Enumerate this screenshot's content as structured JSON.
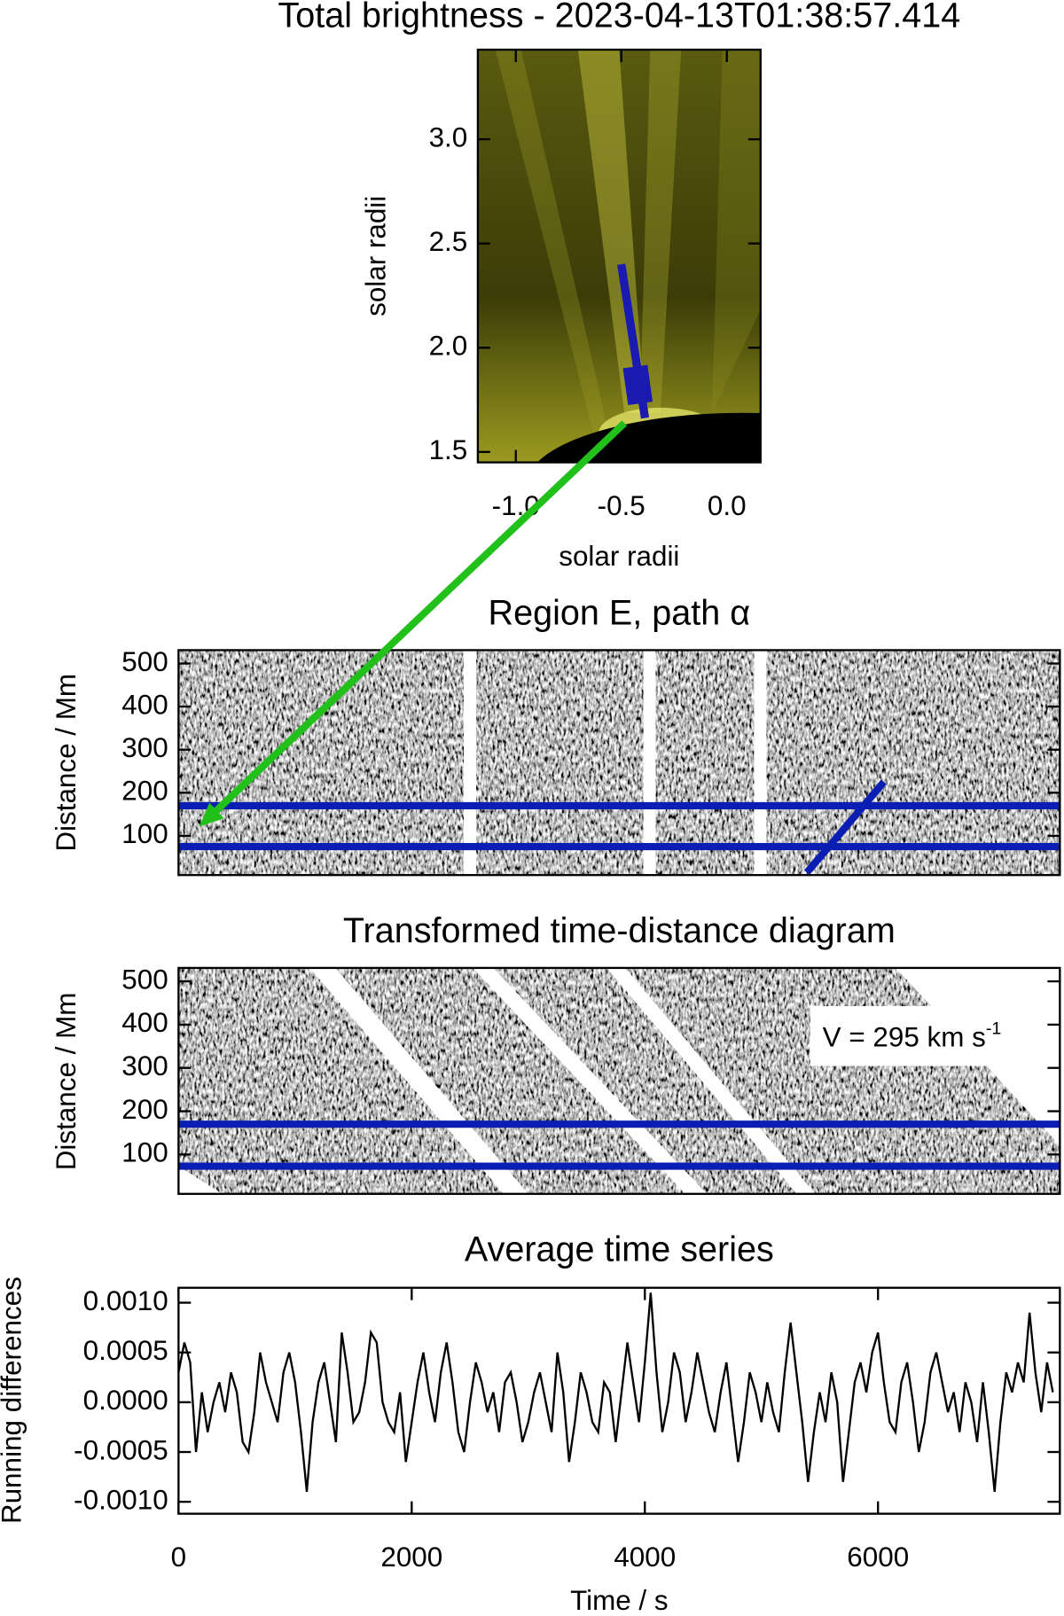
{
  "chart_data": [
    {
      "type": "image",
      "title": "Total brightness - 2023-04-13T01:38:57.414",
      "xlabel": "solar radii",
      "ylabel": "solar radii",
      "xlim": [
        -1.18,
        0.16
      ],
      "ylim": [
        1.45,
        3.43
      ],
      "xticks": [
        {
          "value": -1,
          "label": "-1.0"
        },
        -0.5,
        {
          "value": 0,
          "label": "0.0"
        }
      ],
      "yticks": [
        1.5,
        {
          "value": 2,
          "label": "2.0"
        },
        2.5,
        {
          "value": 3,
          "label": "3.0"
        }
      ]
    },
    {
      "type": "heatmap",
      "title": "Region E, path α",
      "ylabel": "Distance / Mm",
      "xlim": [
        0,
        7560
      ],
      "ylim": [
        9,
        531
      ],
      "yticks": [
        100,
        200,
        300,
        400,
        500
      ],
      "hlines": [
        170,
        75
      ],
      "line_color": "#0a1eb4",
      "gaps": [
        2500,
        4040,
        4990
      ],
      "fit": {
        "x": [
          5390,
          6050
        ],
        "y": [
          15,
          225
        ]
      }
    },
    {
      "type": "heatmap",
      "title": "Transformed time-distance diagram",
      "ylabel": "Distance / Mm",
      "xlim": [
        0,
        7560
      ],
      "ylim": [
        9,
        531
      ],
      "yticks": [
        100,
        200,
        300,
        400,
        500
      ],
      "hlines": [
        170,
        73
      ],
      "line_color": "#0a1eb4",
      "annotation": {
        "text": "V = 295 km s",
        "sup": "-1"
      }
    },
    {
      "type": "line",
      "title": "Average time series",
      "xlabel": "Time / s",
      "ylabel": "Running differences",
      "color": "#000000",
      "xlim": [
        0,
        7560
      ],
      "ylim": [
        -0.00112,
        0.00115
      ],
      "xticks": [
        0,
        2000,
        4000,
        6000
      ],
      "yticks": [
        {
          "value": 0.001,
          "label": "0.0010"
        },
        {
          "value": 0.0005,
          "label": "0.0005"
        },
        {
          "value": 0,
          "label": "0.0000"
        },
        {
          "value": -0.0005,
          "label": "-0.0005"
        },
        {
          "value": -0.001,
          "label": "-0.0010"
        }
      ],
      "x": [
        0,
        50,
        100,
        150,
        200,
        250,
        300,
        350,
        400,
        450,
        500,
        550,
        600,
        650,
        700,
        750,
        800,
        850,
        900,
        950,
        1000,
        1050,
        1100,
        1150,
        1200,
        1250,
        1300,
        1350,
        1400,
        1450,
        1500,
        1550,
        1600,
        1650,
        1700,
        1750,
        1800,
        1850,
        1900,
        1950,
        2000,
        2050,
        2100,
        2150,
        2200,
        2250,
        2300,
        2350,
        2400,
        2450,
        2500,
        2550,
        2600,
        2650,
        2700,
        2750,
        2800,
        2850,
        2900,
        2950,
        3000,
        3050,
        3100,
        3150,
        3200,
        3250,
        3300,
        3350,
        3400,
        3450,
        3500,
        3550,
        3600,
        3650,
        3700,
        3750,
        3800,
        3850,
        3900,
        3950,
        4000,
        4050,
        4100,
        4150,
        4200,
        4250,
        4300,
        4350,
        4400,
        4450,
        4500,
        4550,
        4600,
        4650,
        4700,
        4750,
        4800,
        4850,
        4900,
        4950,
        5000,
        5050,
        5100,
        5150,
        5200,
        5250,
        5300,
        5350,
        5400,
        5450,
        5500,
        5550,
        5600,
        5650,
        5700,
        5750,
        5800,
        5850,
        5900,
        5950,
        6000,
        6050,
        6100,
        6150,
        6200,
        6250,
        6300,
        6350,
        6400,
        6450,
        6500,
        6550,
        6600,
        6650,
        6700,
        6750,
        6800,
        6850,
        6900,
        6950,
        7000,
        7050,
        7100,
        7150,
        7200,
        7250,
        7300,
        7350,
        7400,
        7450,
        7500
      ],
      "values": [
        0.0003,
        0.0006,
        0.0004,
        -0.0005,
        0.0001,
        -0.0003,
        0,
        0.0002,
        -0.0001,
        0.0003,
        0.0001,
        -0.0004,
        -0.0005,
        -0.0001,
        0.0005,
        0.0002,
        0,
        -0.0002,
        0.0003,
        0.0005,
        0.0002,
        -0.0003,
        -0.0009,
        -0.0002,
        0.0002,
        0.0004,
        0,
        -0.0004,
        0.0007,
        0.0003,
        -0.0002,
        -0.0001,
        0.0002,
        0.0007,
        0.0006,
        0,
        -0.0002,
        -0.0003,
        0.0001,
        -0.0006,
        -0.0002,
        0.0002,
        0.0005,
        0.0001,
        -0.0002,
        0.0003,
        0.0006,
        0.0002,
        -0.0003,
        -0.0005,
        0,
        0.0004,
        0.0002,
        -0.0001,
        0.0001,
        -0.0003,
        0.0002,
        0.0003,
        0,
        -0.0004,
        -0.0002,
        0.0001,
        0.0003,
        0,
        -0.0003,
        0.0005,
        0.0001,
        -0.0006,
        -0.0002,
        0.0003,
        0.0001,
        -0.0002,
        -0.0003,
        0.0002,
        0.0001,
        -0.0004,
        0.0001,
        0.0006,
        0.0002,
        -0.0002,
        0.0004,
        0.0011,
        0.0003,
        -0.0003,
        0,
        0.0005,
        0.0003,
        -0.0002,
        0.0001,
        0.0005,
        0.0002,
        -0.0001,
        -0.0003,
        0.0001,
        0.0004,
        -0.0001,
        -0.0006,
        -0.0002,
        0.0003,
        0.0001,
        -0.0002,
        0.0002,
        -0.0001,
        -0.0003,
        0.0003,
        0.0008,
        0.0003,
        -0.0002,
        -0.0008,
        -0.0003,
        0.0001,
        -0.0002,
        0.0003,
        0,
        -0.0008,
        -0.0003,
        0.0002,
        0.0004,
        0.0001,
        0.0005,
        0.0007,
        0.0002,
        -0.0002,
        -0.0003,
        0.0002,
        0.0004,
        0,
        -0.0005,
        -0.0002,
        0.0003,
        0.0005,
        0.0002,
        -0.0001,
        0.0001,
        -0.0003,
        0.0002,
        0,
        -0.0004,
        0.0002,
        -0.0003,
        -0.0009,
        -0.0002,
        0.0003,
        0.0001,
        0.0004,
        0.0002,
        0.0009,
        0.0003,
        -0.0001,
        0.0004,
        0.0001
      ]
    }
  ]
}
